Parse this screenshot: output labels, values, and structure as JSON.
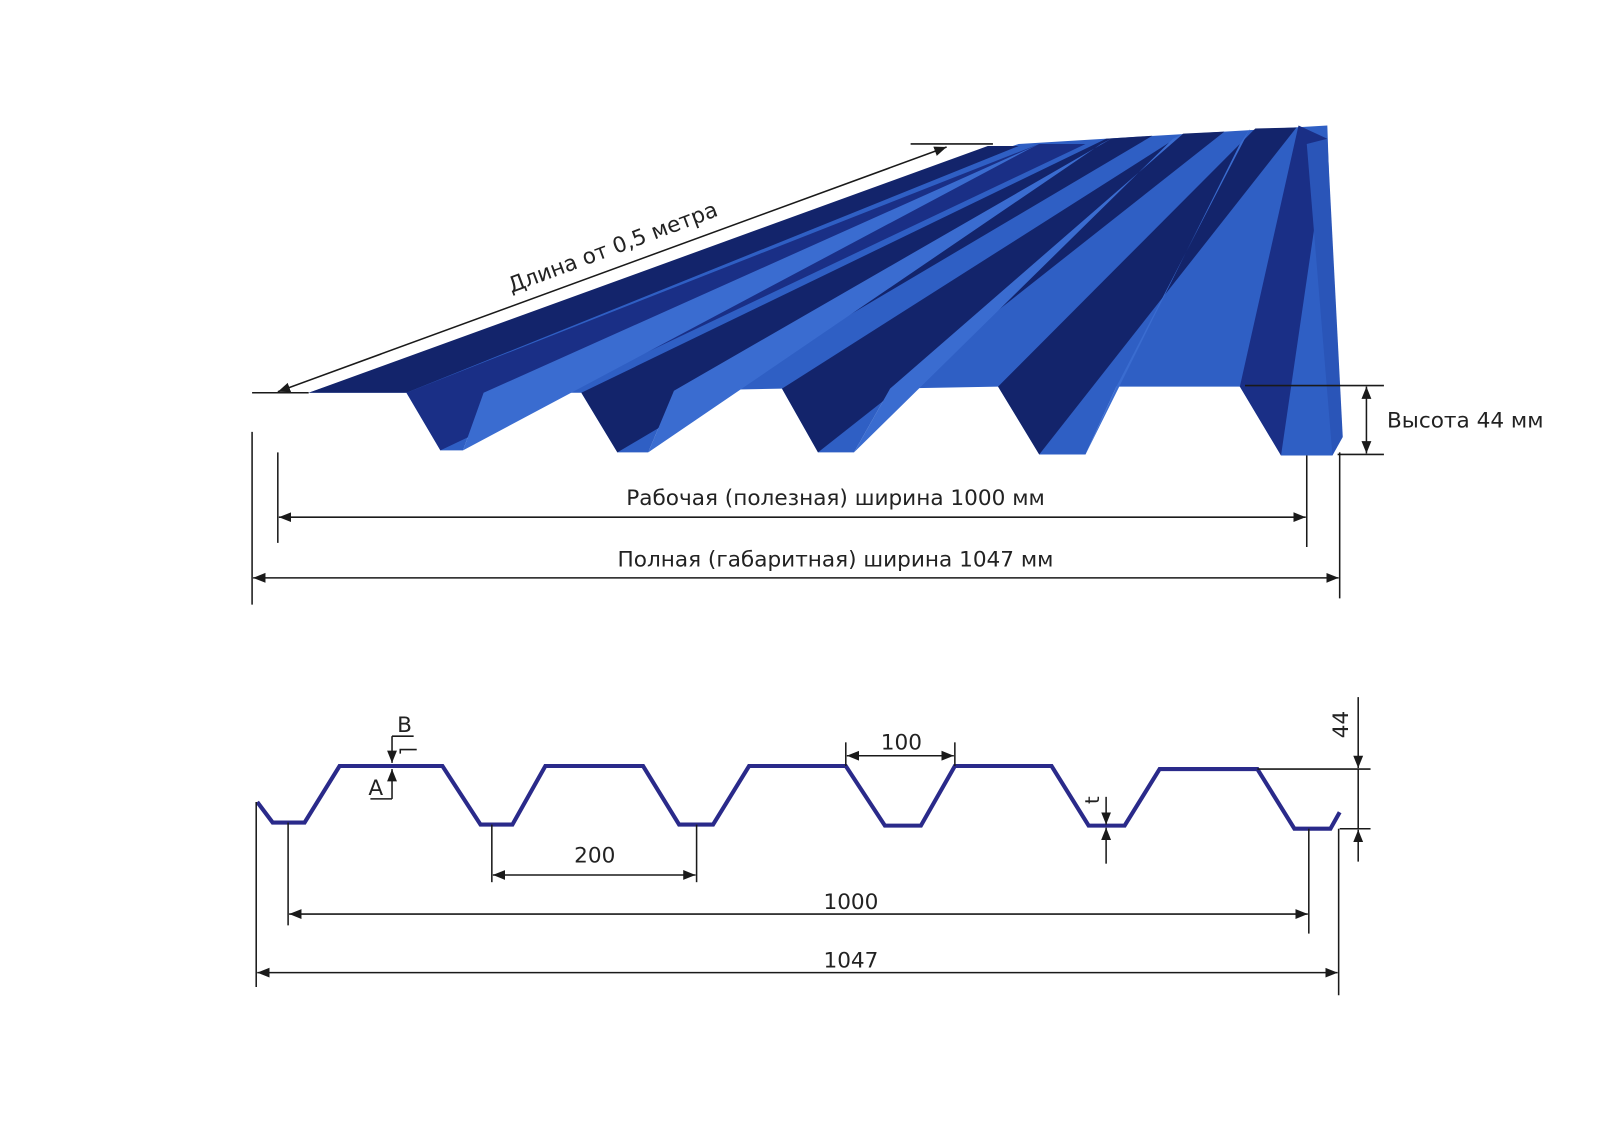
{
  "colors": {
    "sheet_light": "#2f5fc4",
    "sheet_dark": "#13246b",
    "sheet_mid": "#2443a6",
    "profile_line": "#2a2a8a",
    "dimension_line": "#1a1a1a"
  },
  "sheet_view": {
    "length_label": "Длина от 0,5 метра",
    "height_label": "Высота 44 мм",
    "working_width_label": "Рабочая (полезная) ширина 1000 мм",
    "full_width_label": "Полная (габаритная) ширина 1047 мм"
  },
  "profile_view": {
    "label_b": "B",
    "label_a": "A",
    "rib_top_width": "100",
    "pitch": "200",
    "working_width": "1000",
    "full_width": "1047",
    "height": "44",
    "thickness": "t"
  }
}
